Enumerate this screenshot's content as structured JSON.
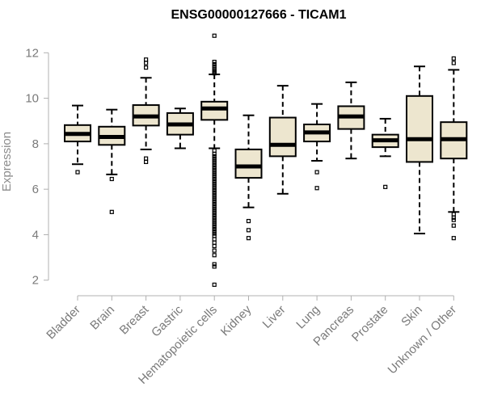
{
  "chart_data": {
    "type": "boxplot",
    "title": "ENSG00000127666 - TICAM1",
    "xlabel": "",
    "ylabel": "Expression",
    "ylim": [
      1.6,
      12.9
    ],
    "yticks": [
      2,
      4,
      6,
      8,
      10,
      12
    ],
    "grid": false,
    "legend": "none",
    "box_fill": "#ede6cf",
    "box_stroke": "#000000",
    "categories": [
      "Bladder",
      "Brain",
      "Breast",
      "Gastric",
      "Hematopoietic cells",
      "Kidney",
      "Liver",
      "Lung",
      "Pancreas",
      "Prostate",
      "Skin",
      "Unknown / Other"
    ],
    "boxes": [
      {
        "category": "Bladder",
        "whisker_low": 7.1,
        "q1": 8.1,
        "median": 8.43,
        "q3": 8.82,
        "whisker_high": 9.68,
        "outliers": [
          6.75
        ]
      },
      {
        "category": "Brain",
        "whisker_low": 6.65,
        "q1": 7.95,
        "median": 8.3,
        "q3": 8.75,
        "whisker_high": 9.5,
        "outliers": [
          6.45,
          5.0
        ]
      },
      {
        "category": "Breast",
        "whisker_low": 7.75,
        "q1": 8.8,
        "median": 9.2,
        "q3": 9.7,
        "whisker_high": 10.9,
        "outliers": [
          7.35,
          7.2,
          11.35,
          11.55,
          11.7
        ]
      },
      {
        "category": "Gastric",
        "whisker_low": 7.8,
        "q1": 8.4,
        "median": 8.85,
        "q3": 9.35,
        "whisker_high": 9.55,
        "outliers": []
      },
      {
        "category": "Hematopoietic cells",
        "whisker_low": 7.8,
        "q1": 9.05,
        "median": 9.55,
        "q3": 9.85,
        "whisker_high": 11.05,
        "outliers": [
          12.75,
          11.6,
          11.5,
          11.4,
          11.3,
          11.2,
          11.15,
          11.1,
          7.7,
          7.55,
          7.45,
          7.35,
          7.25,
          7.15,
          7.05,
          6.95,
          6.85,
          6.75,
          6.65,
          6.55,
          6.45,
          6.35,
          6.25,
          6.15,
          6.05,
          5.95,
          5.85,
          5.75,
          5.65,
          5.55,
          5.45,
          5.35,
          5.25,
          5.15,
          5.05,
          4.95,
          4.85,
          4.75,
          4.65,
          4.55,
          4.45,
          4.35,
          4.25,
          4.15,
          4.05,
          3.95,
          3.8,
          3.65,
          3.5,
          3.3,
          3.1,
          2.7,
          2.6,
          1.8
        ]
      },
      {
        "category": "Kidney",
        "whisker_low": 5.2,
        "q1": 6.5,
        "median": 7.0,
        "q3": 7.75,
        "whisker_high": 9.25,
        "outliers": [
          4.6,
          4.2,
          3.85
        ]
      },
      {
        "category": "Liver",
        "whisker_low": 5.8,
        "q1": 7.45,
        "median": 7.95,
        "q3": 9.15,
        "whisker_high": 10.55,
        "outliers": []
      },
      {
        "category": "Lung",
        "whisker_low": 7.25,
        "q1": 8.1,
        "median": 8.5,
        "q3": 8.85,
        "whisker_high": 9.75,
        "outliers": [
          6.75,
          6.05
        ]
      },
      {
        "category": "Pancreas",
        "whisker_low": 7.35,
        "q1": 8.65,
        "median": 9.2,
        "q3": 9.65,
        "whisker_high": 10.7,
        "outliers": []
      },
      {
        "category": "Prostate",
        "whisker_low": 7.45,
        "q1": 7.85,
        "median": 8.15,
        "q3": 8.4,
        "whisker_high": 9.1,
        "outliers": [
          6.1
        ]
      },
      {
        "category": "Skin",
        "whisker_low": 4.05,
        "q1": 7.2,
        "median": 8.2,
        "q3": 10.1,
        "whisker_high": 11.4,
        "outliers": []
      },
      {
        "category": "Unknown / Other",
        "whisker_low": 5.0,
        "q1": 7.35,
        "median": 8.2,
        "q3": 8.95,
        "whisker_high": 11.25,
        "outliers": [
          11.55,
          11.75,
          4.9,
          4.75,
          4.65,
          4.4,
          3.85
        ]
      }
    ]
  }
}
